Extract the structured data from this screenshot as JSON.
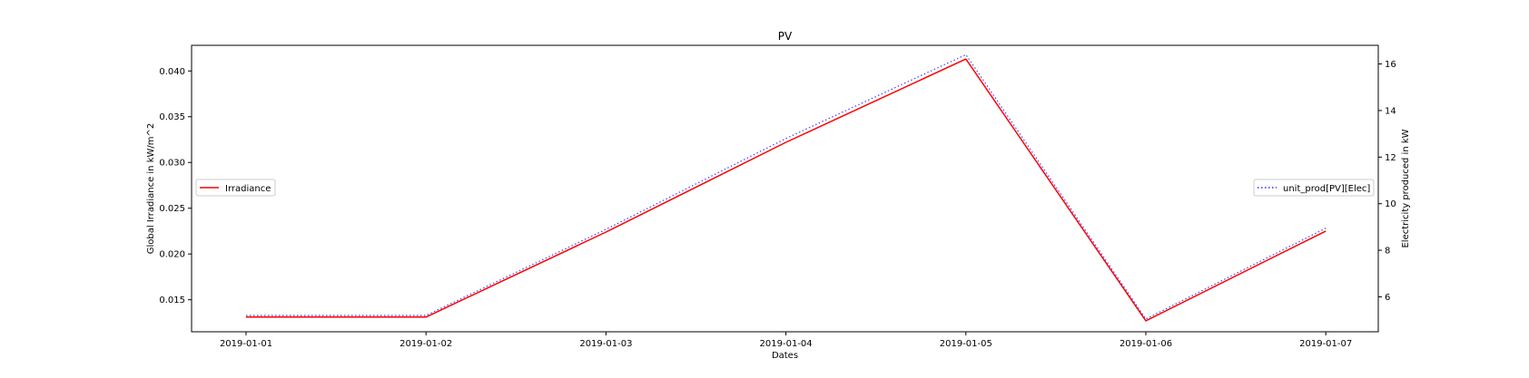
{
  "chart_data": {
    "type": "line",
    "title": "PV",
    "xlabel": "Dates",
    "ylabel_left": "Global Irradiance in kW/m^2",
    "ylabel_right": "Electricity produced in kW",
    "x": [
      "2019-01-01",
      "2019-01-02",
      "2019-01-03",
      "2019-01-04",
      "2019-01-05",
      "2019-01-06",
      "2019-01-07"
    ],
    "y_left_ticks": [
      "0.015",
      "0.020",
      "0.025",
      "0.030",
      "0.035",
      "0.040"
    ],
    "y_right_ticks": [
      "6",
      "8",
      "10",
      "12",
      "14",
      "16"
    ],
    "y_left_lim": [
      0.0115,
      0.0428
    ],
    "y_right_lim": [
      4.5,
      16.8
    ],
    "grid": false,
    "series": [
      {
        "name": "Irradiance",
        "axis": "left",
        "color": "#ff0000",
        "style": "solid",
        "legend_position": "center-left",
        "values": [
          0.0131,
          0.0131,
          0.0224,
          0.0322,
          0.0413,
          0.0127,
          0.0225
        ]
      },
      {
        "name": "unit_prod[PV][Elec]",
        "axis": "right",
        "color": "#0000ff",
        "style": "dotted",
        "legend_position": "center-right",
        "values": [
          5.2,
          5.2,
          8.9,
          12.8,
          16.4,
          5.05,
          8.95
        ]
      }
    ]
  }
}
